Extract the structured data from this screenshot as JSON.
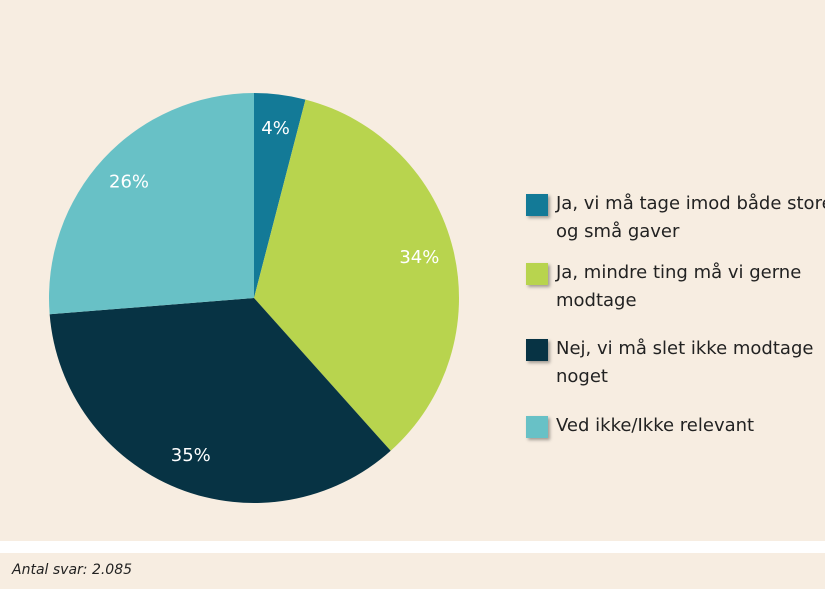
{
  "chart_data": {
    "type": "pie",
    "categories": [
      "Ja, vi må tage imod både store og små gaver",
      "Ja, mindre ting må vi gerne modtage",
      "Nej, vi må slet ikke modtage noget",
      "Ved ikke/Ikke relevant"
    ],
    "values": [
      4,
      34,
      35,
      26
    ],
    "value_labels": [
      "4%",
      "34%",
      "35%",
      "26%"
    ],
    "colors": [
      "#137a97",
      "#b8d44e",
      "#073344",
      "#68c1c6"
    ],
    "legend": "right",
    "note": "Antal svar: 2.085"
  }
}
